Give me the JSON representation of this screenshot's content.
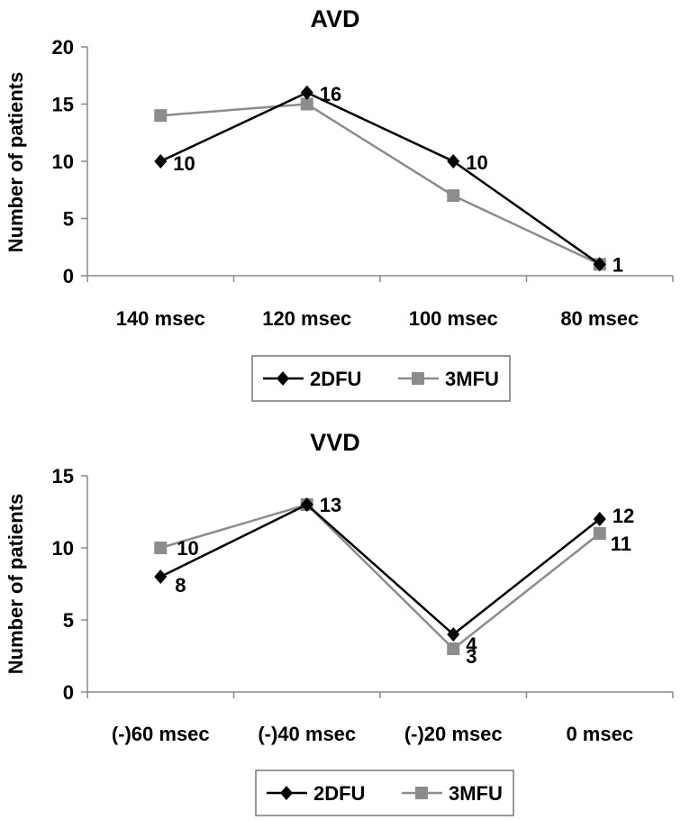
{
  "chart_data": [
    {
      "type": "line",
      "title": "AVD",
      "ylabel": "Number of patients",
      "xlabel": "",
      "categories": [
        "140 msec",
        "120 msec",
        "100 msec",
        "80 msec"
      ],
      "ylim": [
        0,
        20
      ],
      "yticks": [
        0,
        5,
        10,
        15,
        20
      ],
      "series": [
        {
          "name": "2DFU",
          "marker": "diamond",
          "color": "#000000",
          "values": [
            10,
            16,
            10,
            1
          ]
        },
        {
          "name": "3MFU",
          "marker": "square",
          "color": "#8c8c8c",
          "values": [
            14,
            15,
            7,
            1
          ]
        }
      ],
      "data_labels": [
        {
          "series": "2DFU",
          "index": 0,
          "text": "10"
        },
        {
          "series": "2DFU",
          "index": 1,
          "text": "16"
        },
        {
          "series": "2DFU",
          "index": 2,
          "text": "10"
        },
        {
          "series": "2DFU",
          "index": 3,
          "text": "1"
        }
      ],
      "legend": "bottom",
      "grid": false
    },
    {
      "type": "line",
      "title": "VVD",
      "ylabel": "Number of patients",
      "xlabel": "",
      "categories": [
        "(-)60 msec",
        "(-)40 msec",
        "(-)20 msec",
        "0 msec"
      ],
      "ylim": [
        0,
        15
      ],
      "yticks": [
        0,
        5,
        10,
        15
      ],
      "series": [
        {
          "name": "2DFU",
          "marker": "diamond",
          "color": "#000000",
          "values": [
            8,
            13,
            4,
            12
          ]
        },
        {
          "name": "3MFU",
          "marker": "square",
          "color": "#8c8c8c",
          "values": [
            10,
            13,
            3,
            11
          ]
        }
      ],
      "data_labels": [
        {
          "series": "2DFU",
          "index": 0,
          "text": "8"
        },
        {
          "series": "3MFU",
          "index": 0,
          "text": "10"
        },
        {
          "series": "2DFU",
          "index": 1,
          "text": "13"
        },
        {
          "series": "2DFU",
          "index": 2,
          "text": "4"
        },
        {
          "series": "3MFU",
          "index": 2,
          "text": "3"
        },
        {
          "series": "2DFU",
          "index": 3,
          "text": "12"
        },
        {
          "series": "3MFU",
          "index": 3,
          "text": "11"
        }
      ],
      "legend": "bottom",
      "grid": false
    }
  ]
}
